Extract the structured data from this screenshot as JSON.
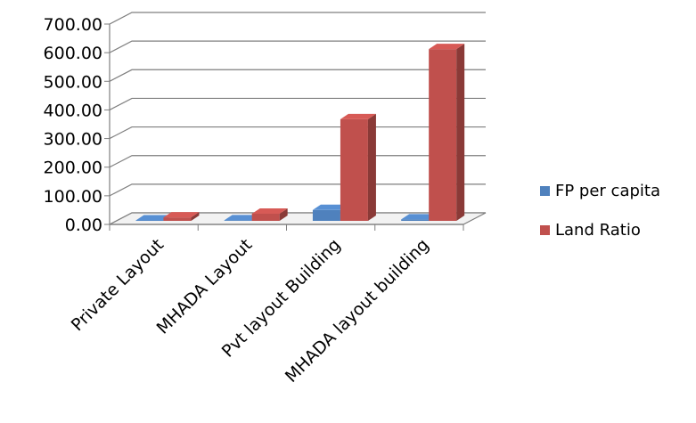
{
  "chart_data": {
    "type": "bar",
    "style": "3d-clustered-column",
    "categories": [
      "Private Layout",
      "MHADA Layout",
      "Pvt layout Building",
      "MHADA layout building"
    ],
    "series": [
      {
        "name": "FP per capita",
        "color": "#4f81bd",
        "values": [
          1.5,
          2.0,
          38.0,
          5.0
        ]
      },
      {
        "name": "Land Ratio",
        "color": "#c0504d",
        "values": [
          12.0,
          25.0,
          355.0,
          600.0
        ]
      }
    ],
    "ylim": [
      0,
      700
    ],
    "y_ticks": [
      "0.00",
      "100.00",
      "200.00",
      "300.00",
      "400.00",
      "500.00",
      "600.00",
      "700.00"
    ],
    "grid": true,
    "legend_position": "right"
  }
}
